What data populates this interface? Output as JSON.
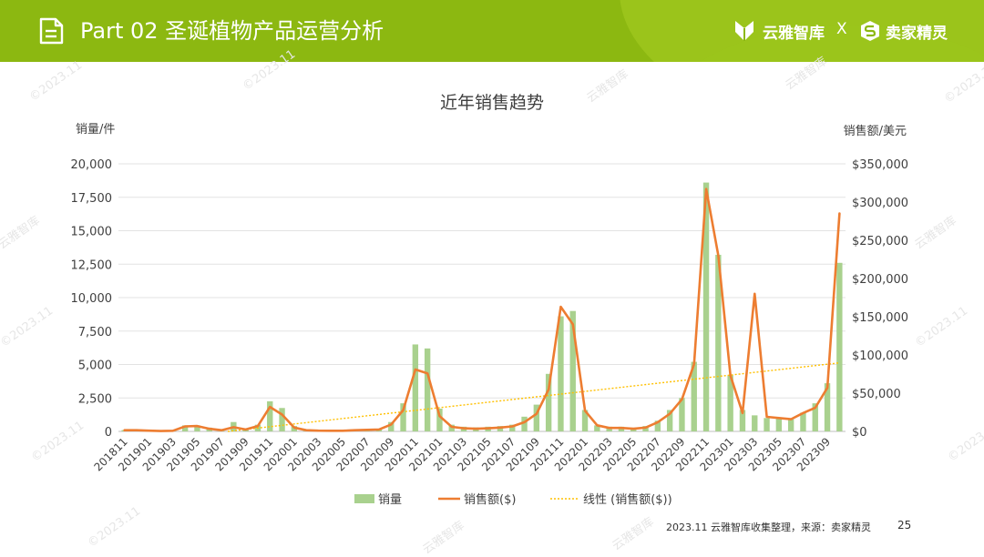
{
  "header": {
    "title": "Part 02 圣诞植物产品运营分析",
    "brand1": "云雅智库",
    "times": "X",
    "brand2": "卖家精灵"
  },
  "watermark": {
    "text1": "©2023.11",
    "text2": "云雅智库"
  },
  "footer": {
    "source": "2023.11 云雅智库收集整理，来源：卖家精灵",
    "page": "25"
  },
  "colors": {
    "header_bg": "#8cb811",
    "bar": "#a9d18e",
    "line": "#ed7d31",
    "trend": "#ffc000"
  },
  "chart_data": {
    "type": "bar",
    "title": "近年销售趋势",
    "y_left_label": "销量/件",
    "y_right_label": "销售额/美元",
    "y_left_range": [
      0,
      20000
    ],
    "y_right_range": [
      0,
      350000
    ],
    "y_left_ticks": [
      "0",
      "2,500",
      "5,000",
      "7,500",
      "10,000",
      "12,500",
      "15,000",
      "17,500",
      "20,000"
    ],
    "y_right_ticks": [
      "$0",
      "$50,000",
      "$100,000",
      "$150,000",
      "$200,000",
      "$250,000",
      "$300,000",
      "$350,000"
    ],
    "grid": true,
    "legend_position": "bottom",
    "x": [
      "201811",
      "201812",
      "201901",
      "201902",
      "201903",
      "201904",
      "201905",
      "201906",
      "201907",
      "201908",
      "201909",
      "201910",
      "201911",
      "201912",
      "202001",
      "202002",
      "202003",
      "202004",
      "202005",
      "202006",
      "202007",
      "202008",
      "202009",
      "202010",
      "202011",
      "202012",
      "202101",
      "202102",
      "202103",
      "202104",
      "202105",
      "202106",
      "202107",
      "202108",
      "202109",
      "202110",
      "202111",
      "202112",
      "202201",
      "202202",
      "202203",
      "202204",
      "202205",
      "202206",
      "202207",
      "202208",
      "202209",
      "202210",
      "202211",
      "202212",
      "202301",
      "202302",
      "202303",
      "202304",
      "202305",
      "202306",
      "202307",
      "202308",
      "202309",
      "202310"
    ],
    "x_tick_labels": [
      "201811",
      "201901",
      "201903",
      "201905",
      "201907",
      "201909",
      "201911",
      "202001",
      "202003",
      "202005",
      "202007",
      "202009",
      "202011",
      "202101",
      "202103",
      "202105",
      "202107",
      "202109",
      "202111",
      "202201",
      "202203",
      "202205",
      "202207",
      "202209",
      "202211",
      "202301",
      "202303",
      "202305",
      "202307",
      "202309"
    ],
    "series": [
      {
        "name": "销量",
        "type": "bar",
        "axis": "left",
        "values": [
          100,
          80,
          50,
          40,
          30,
          450,
          450,
          280,
          120,
          700,
          200,
          500,
          2250,
          1750,
          400,
          100,
          50,
          40,
          40,
          80,
          100,
          150,
          700,
          2100,
          6500,
          6200,
          1700,
          500,
          350,
          300,
          350,
          400,
          500,
          1100,
          2000,
          4300,
          8600,
          9000,
          1600,
          450,
          350,
          350,
          280,
          400,
          800,
          1600,
          2500,
          5200,
          18600,
          13200,
          4200,
          1600,
          1200,
          1000,
          950,
          900,
          1400,
          2100,
          3600,
          12600
        ]
      },
      {
        "name": "销售额($)",
        "type": "line",
        "axis": "right",
        "values": [
          1500,
          1500,
          1000,
          500,
          800,
          6500,
          7000,
          3500,
          1500,
          5500,
          2500,
          7000,
          32000,
          22000,
          5000,
          1500,
          1000,
          800,
          800,
          1500,
          2000,
          2500,
          9000,
          28000,
          81000,
          76000,
          20000,
          6000,
          4000,
          3500,
          4000,
          5000,
          6500,
          12000,
          23000,
          55000,
          163000,
          140000,
          27000,
          8000,
          4500,
          4500,
          3500,
          5000,
          12000,
          23000,
          42000,
          88000,
          317000,
          230000,
          73000,
          24000,
          180000,
          19000,
          17500,
          16000,
          24000,
          31000,
          57000,
          285000
        ]
      }
    ],
    "trend": {
      "name": "线性 (销售额($))",
      "type": "linear",
      "axis": "right",
      "of_series": "销售额($)"
    }
  }
}
